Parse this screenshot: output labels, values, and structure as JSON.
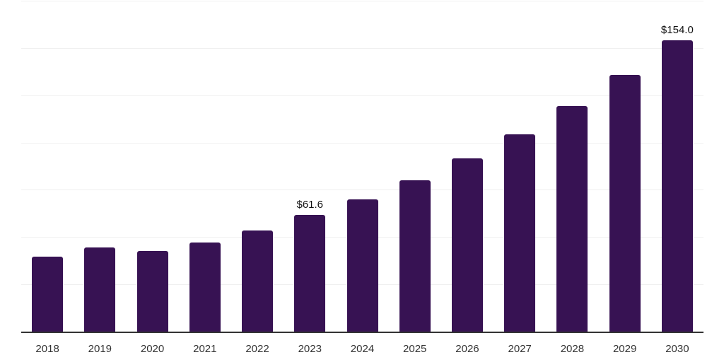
{
  "chart_data": {
    "type": "bar",
    "title": "",
    "xlabel": "",
    "ylabel": "",
    "categories": [
      "2018",
      "2019",
      "2020",
      "2021",
      "2022",
      "2023",
      "2024",
      "2025",
      "2026",
      "2027",
      "2028",
      "2029",
      "2030"
    ],
    "values": [
      39.8,
      44.5,
      42.6,
      47.1,
      53.6,
      61.6,
      70.1,
      80.2,
      91.8,
      104.5,
      119.2,
      135.6,
      154.0
    ],
    "data_labels": {
      "2023": "$61.6",
      "2030": "$154.0"
    },
    "ylim": [
      0,
      175
    ],
    "grid_interval": 25,
    "grid": "horizontal-only",
    "legend": "none",
    "y_tick_labels_visible": false,
    "colors": {
      "bar": "#371253",
      "gridline": "#f0f0f0",
      "axis_line": "#333333",
      "tick_label": "#333333",
      "data_label": "#111111",
      "background": "#ffffff"
    }
  }
}
